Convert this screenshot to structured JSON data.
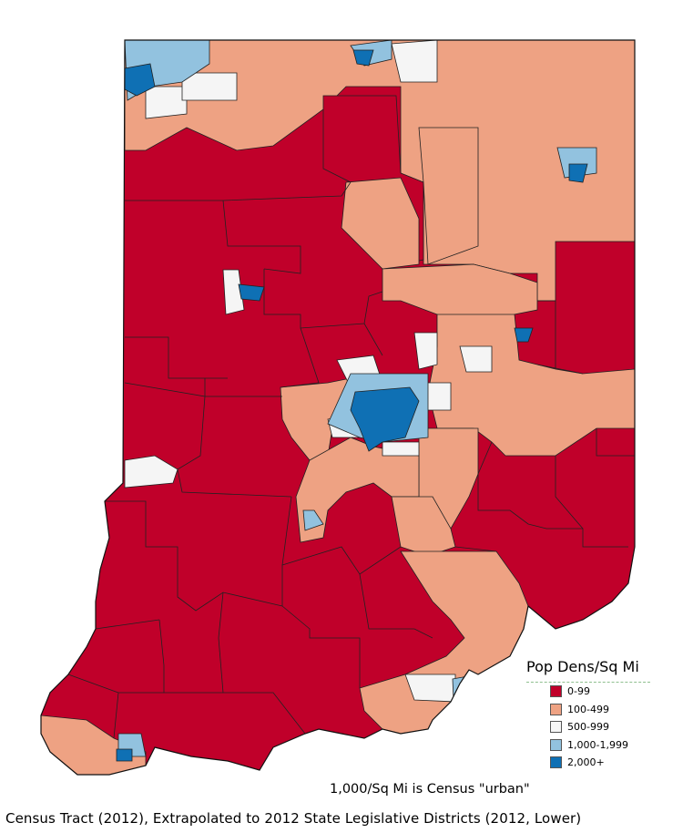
{
  "legend": {
    "title": "Pop Dens/Sq Mi",
    "items": [
      {
        "label": "0-99",
        "color": "#c0002a"
      },
      {
        "label": "100-499",
        "color": "#eea283"
      },
      {
        "label": "500-999",
        "color": "#f5f5f5"
      },
      {
        "label": "1,000-1,999",
        "color": "#92c2df"
      },
      {
        "label": "2,000+",
        "color": "#0f70b4"
      }
    ]
  },
  "note": "1,000/Sq Mi is Census \"urban\"",
  "caption": "Census Tract (2012), Extrapolated to 2012 State Legislative Districts (2012, Lower)",
  "colors": {
    "red": "#c0002a",
    "salmon": "#eea283",
    "white": "#f5f5f5",
    "lightblue": "#92c2df",
    "blue": "#0f70b4",
    "border": "#222222"
  }
}
